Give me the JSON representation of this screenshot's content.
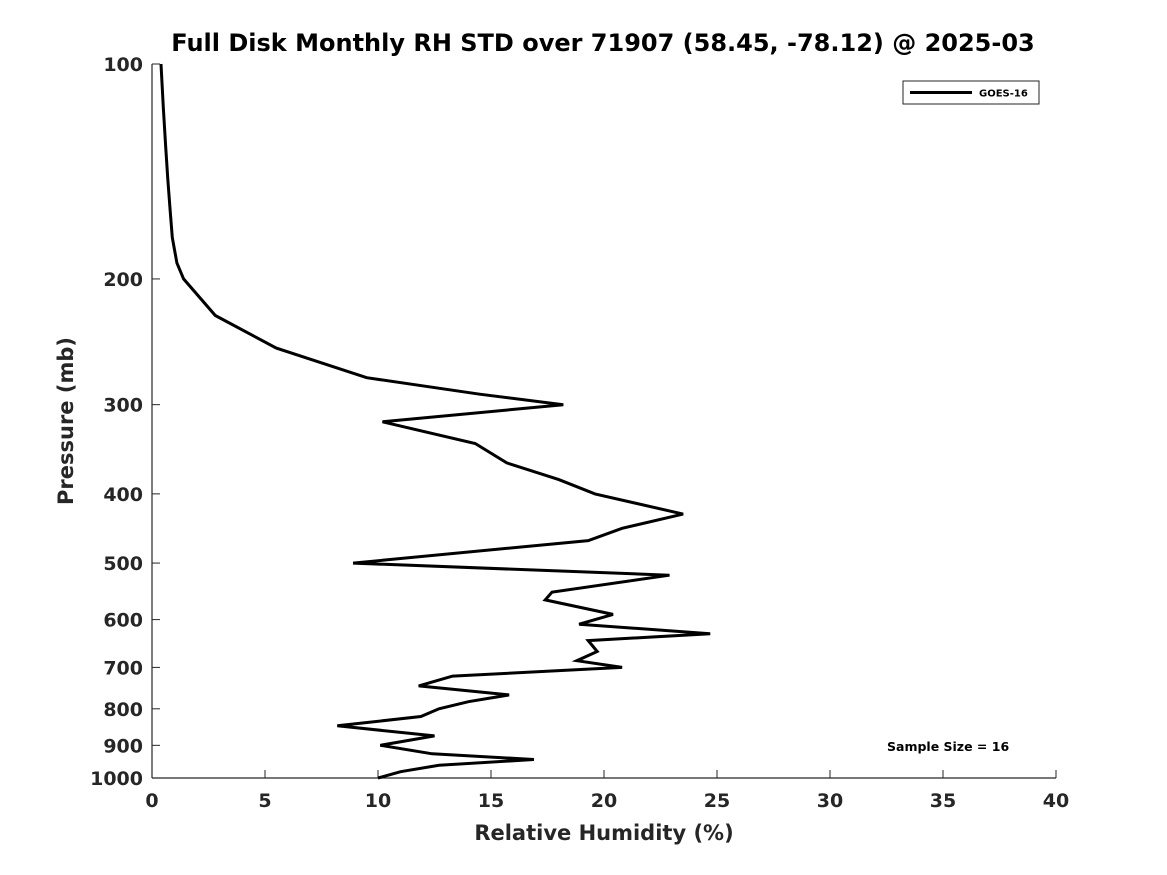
{
  "chart_data": {
    "type": "line",
    "title": "Full Disk Monthly RH STD over 71907 (58.45, -78.12) @ 2025-03",
    "xlabel": "Relative Humidity (%)",
    "ylabel": "Pressure (mb)",
    "xlim": [
      0,
      40
    ],
    "ylim": [
      100,
      1000
    ],
    "y_scale": "log",
    "y_reversed": true,
    "x_ticks": [
      0,
      5,
      10,
      15,
      20,
      25,
      30,
      35,
      40
    ],
    "y_ticks": [
      100,
      200,
      300,
      400,
      500,
      600,
      700,
      800,
      900,
      1000
    ],
    "grid": false,
    "legend_position": "top-right",
    "annotation": "Sample Size = 16",
    "series": [
      {
        "name": "GOES-16",
        "color": "#000000",
        "points": [
          [
            0.4,
            100
          ],
          [
            0.5,
            115
          ],
          [
            0.6,
            130
          ],
          [
            0.7,
            145
          ],
          [
            0.8,
            160
          ],
          [
            0.9,
            175
          ],
          [
            1.1,
            190
          ],
          [
            1.4,
            200
          ],
          [
            2.8,
            225
          ],
          [
            5.5,
            250
          ],
          [
            9.5,
            275
          ],
          [
            14.5,
            290
          ],
          [
            18.2,
            300
          ],
          [
            10.2,
            317
          ],
          [
            14.3,
            340
          ],
          [
            15.7,
            362
          ],
          [
            18.0,
            382
          ],
          [
            19.6,
            400
          ],
          [
            23.5,
            427
          ],
          [
            20.8,
            447
          ],
          [
            19.3,
            465
          ],
          [
            8.9,
            500
          ],
          [
            22.9,
            520
          ],
          [
            17.7,
            549
          ],
          [
            17.4,
            563
          ],
          [
            20.4,
            590
          ],
          [
            18.9,
            609
          ],
          [
            24.7,
            628
          ],
          [
            19.3,
            642
          ],
          [
            19.7,
            665
          ],
          [
            18.8,
            685
          ],
          [
            20.8,
            700
          ],
          [
            13.3,
            720
          ],
          [
            11.8,
            743
          ],
          [
            15.8,
            765
          ],
          [
            14.0,
            782
          ],
          [
            12.7,
            800
          ],
          [
            11.9,
            820
          ],
          [
            8.2,
            845
          ],
          [
            12.5,
            873
          ],
          [
            10.1,
            900
          ],
          [
            12.4,
            925
          ],
          [
            16.9,
            942
          ],
          [
            12.7,
            960
          ],
          [
            11.0,
            980
          ],
          [
            10.0,
            1000
          ]
        ]
      }
    ]
  }
}
